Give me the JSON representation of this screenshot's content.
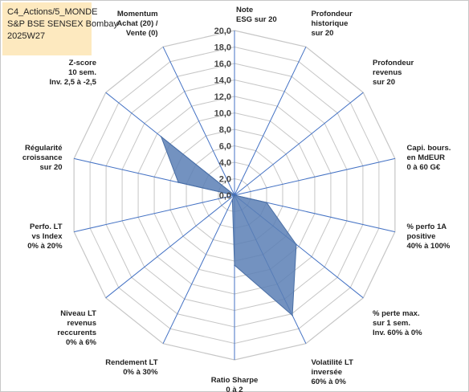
{
  "info_box": {
    "line1": "C4_Actions/5_MONDE",
    "line2": "S&P BSE SENSEX Bombay",
    "line3": "2025W27"
  },
  "colors": {
    "fill": "#5b7fb5",
    "line": "#4a6fa5",
    "spoke": "#4472c4",
    "grid": "#c6c6c6",
    "info_box_bg": "#fde9bf"
  },
  "chart_data": {
    "type": "radar",
    "rmin": 0,
    "rmax": 20,
    "tick_step": 2,
    "tick_labels": [
      "0,0",
      "2,0",
      "4,0",
      "6,0",
      "8,0",
      "10,0",
      "12,0",
      "14,0",
      "16,0",
      "18,0",
      "20,0"
    ],
    "axes": [
      {
        "lines": [
          "Note",
          "ESG sur 20"
        ],
        "value": 0
      },
      {
        "lines": [
          "Profondeur",
          "historique",
          "sur 20"
        ],
        "value": 0
      },
      {
        "lines": [
          "Profondeur",
          "revenus",
          "sur 20"
        ],
        "value": 0
      },
      {
        "lines": [
          "Capi. bours.",
          "en MdEUR",
          "0 à 60 G€"
        ],
        "value": 0
      },
      {
        "lines": [
          "% perfo 1A",
          "positive",
          "40% à 100%"
        ],
        "value": 4.0
      },
      {
        "lines": [
          "% perte max.",
          "sur 1 sem.",
          "Inv. 60% à 0%"
        ],
        "value": 9.6
      },
      {
        "lines": [
          "Volatilité LT",
          "inversée",
          "60% à 0%"
        ],
        "value": 16.2
      },
      {
        "lines": [
          "Ratio Sharpe",
          "0 à 2"
        ],
        "value": 8.5
      },
      {
        "lines": [
          "Rendement LT",
          "0% à 30%"
        ],
        "value": 0.6
      },
      {
        "lines": [
          "Niveau LT",
          "revenus",
          "reccurents",
          "0% à 6%"
        ],
        "value": 0
      },
      {
        "lines": [
          "Perfo. LT",
          "vs Index",
          "0% à 20%"
        ],
        "value": 0
      },
      {
        "lines": [
          "Régularité",
          "croissance",
          "sur 20"
        ],
        "value": 7.0
      },
      {
        "lines": [
          "Z-score",
          "10 sem.",
          "Inv. 2,5 à -2,5"
        ],
        "value": 11.4
      },
      {
        "lines": [
          "Momentum",
          "Achat (20) /",
          "Vente (0)"
        ],
        "value": 0
      }
    ]
  }
}
